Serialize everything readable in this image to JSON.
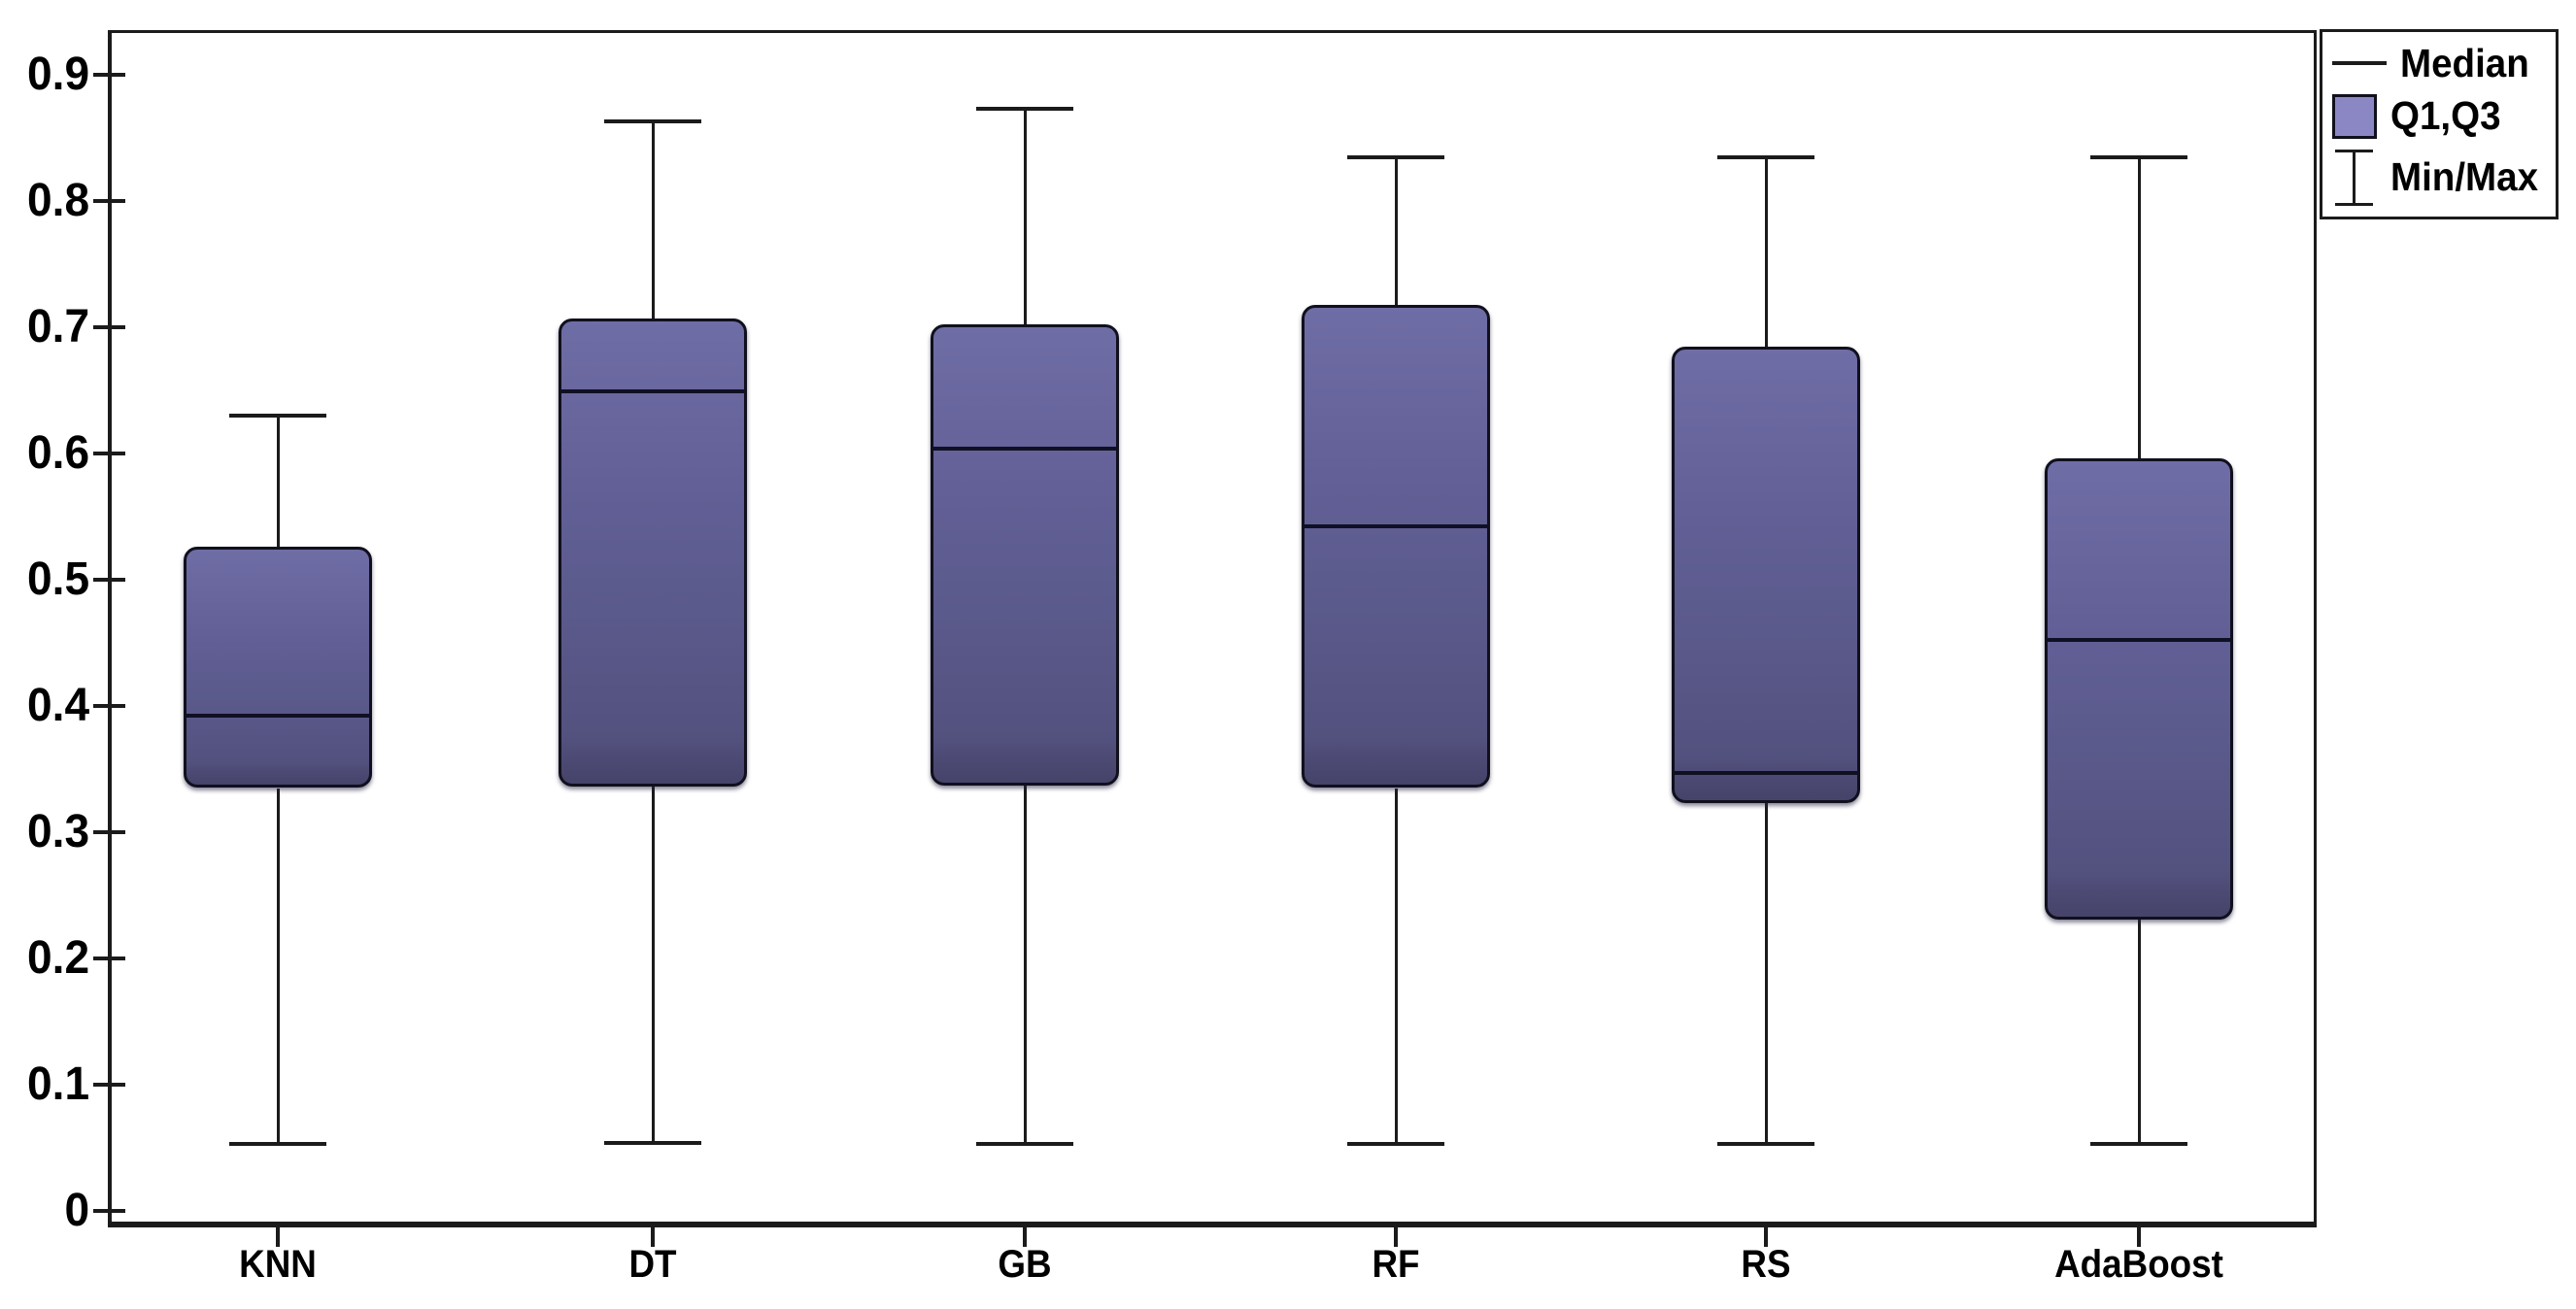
{
  "chart_data": {
    "type": "boxplot",
    "categories": [
      "KNN",
      "DT",
      "GB",
      "RF",
      "RS",
      "AdaBoost"
    ],
    "series": [
      {
        "name": "KNN",
        "min": 0.053,
        "q1": 0.335,
        "median": 0.392,
        "q3": 0.526,
        "max": 0.63
      },
      {
        "name": "DT",
        "min": 0.054,
        "q1": 0.336,
        "median": 0.649,
        "q3": 0.707,
        "max": 0.863
      },
      {
        "name": "GB",
        "min": 0.053,
        "q1": 0.337,
        "median": 0.604,
        "q3": 0.702,
        "max": 0.873
      },
      {
        "name": "RF",
        "min": 0.053,
        "q1": 0.335,
        "median": 0.542,
        "q3": 0.718,
        "max": 0.835
      },
      {
        "name": "RS",
        "min": 0.053,
        "q1": 0.323,
        "median": 0.347,
        "q3": 0.685,
        "max": 0.835
      },
      {
        "name": "AdaBoost",
        "min": 0.053,
        "q1": 0.231,
        "median": 0.452,
        "q3": 0.596,
        "max": 0.835
      }
    ],
    "title": "",
    "xlabel": "",
    "ylabel": "",
    "ylim": [
      0,
      0.9
    ],
    "y_tick_step": 0.1,
    "grid": false,
    "legend_position": "top-right"
  },
  "y_axis": {
    "tick_values": [
      0,
      0.1,
      0.2,
      0.3,
      0.4,
      0.5,
      0.6,
      0.7,
      0.8,
      0.9
    ],
    "tick_labels": [
      "0",
      "0.1",
      "0.2",
      "0.3",
      "0.4",
      "0.5",
      "0.6",
      "0.7",
      "0.8",
      "0.9"
    ]
  },
  "legend": {
    "items": [
      {
        "label": "Median",
        "icon": "median-line-icon"
      },
      {
        "label": "Q1,Q3",
        "icon": "quartile-box-icon"
      },
      {
        "label": "Min/Max",
        "icon": "minmax-whisker-icon"
      }
    ]
  },
  "colors": {
    "box_fill": "#5b5a8c",
    "box_fill_light": "#6f6da5",
    "box_fill_dark": "#454369",
    "box_border": "#10101e",
    "median_line": "#101024",
    "whisker": "#1b1b1b",
    "axis": "#1b1b1b",
    "legend_swatch": "#8b87c4",
    "text": "#000000",
    "background": "#ffffff"
  }
}
